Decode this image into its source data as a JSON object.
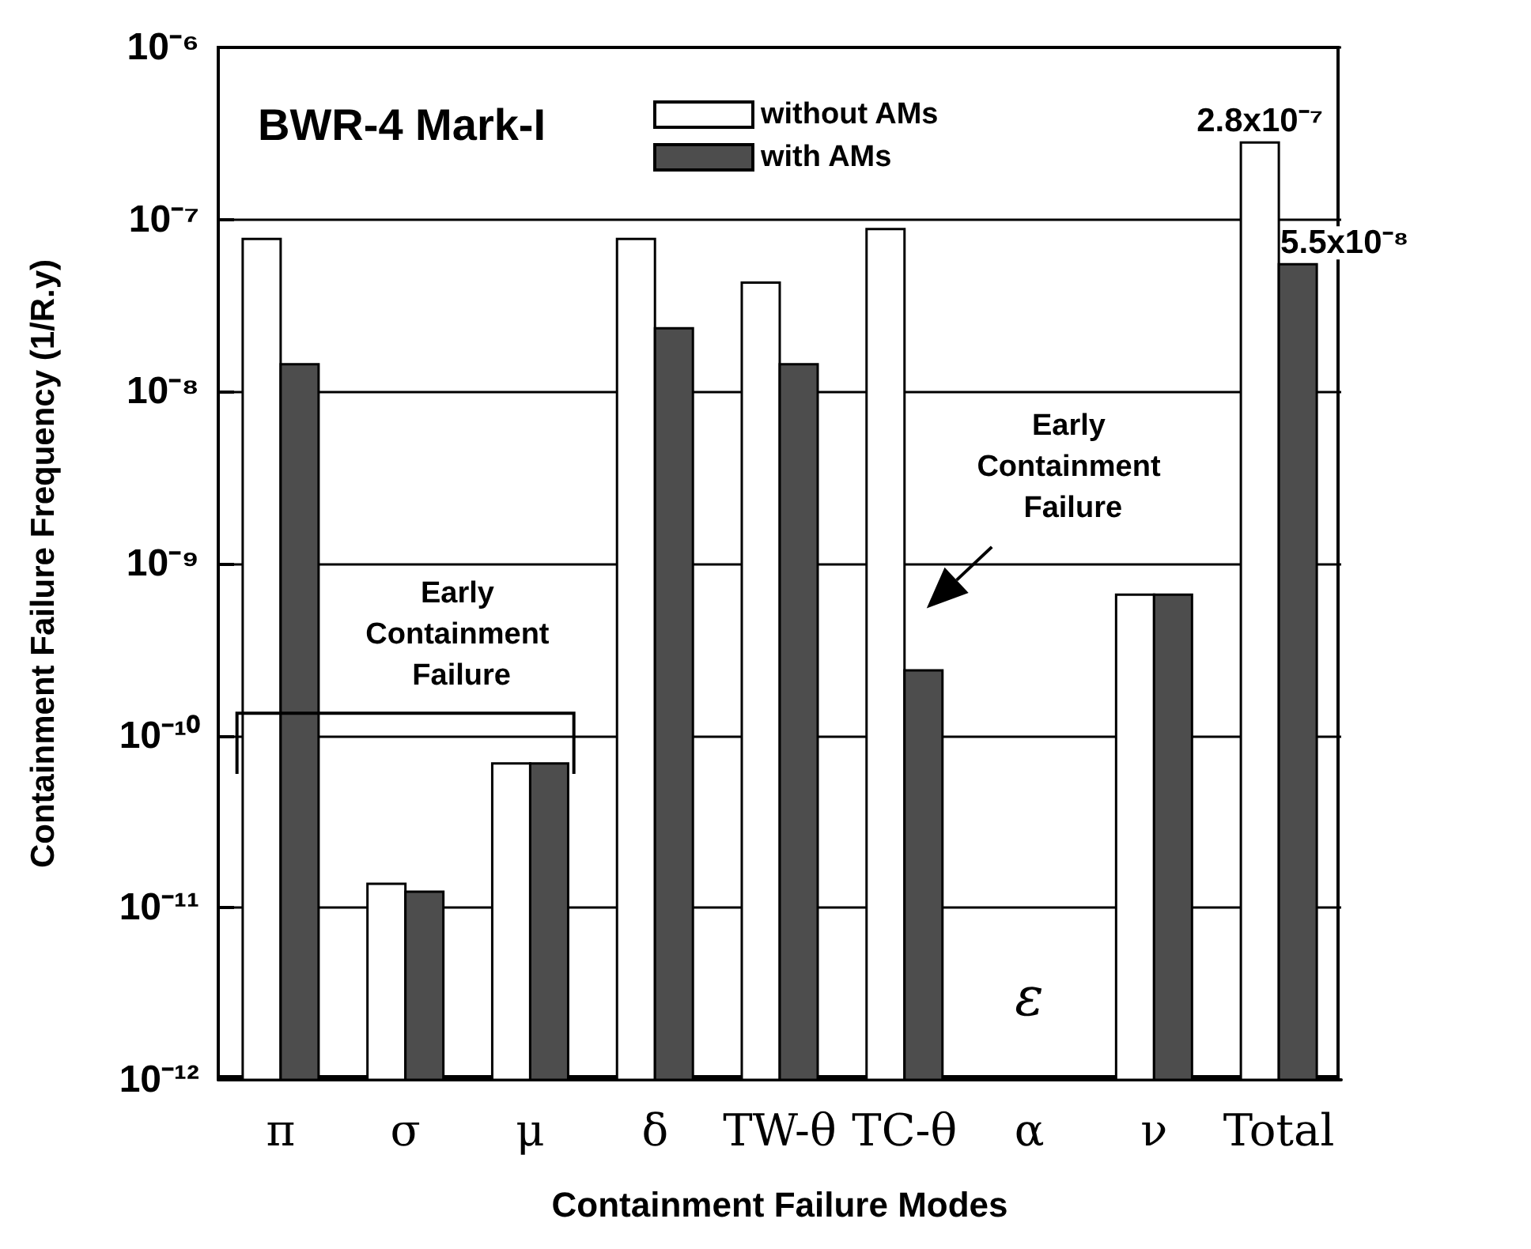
{
  "chart_data": {
    "type": "bar",
    "title": "BWR-4 Mark-I",
    "xlabel": "Containment Failure Modes",
    "ylabel": "Containment Failure Frequency (1/R.y)",
    "categories": [
      "π",
      "σ",
      "μ",
      "δ",
      "TW-θ",
      "TC-θ",
      "α",
      "ν",
      "Total"
    ],
    "series": [
      {
        "name": "without AMs",
        "color": "#ffffff",
        "values": [
          7.7e-08,
          1.38e-11,
          6.9e-11,
          7.7e-08,
          4.3e-08,
          8.8e-08,
          null,
          6.6e-10,
          2.8e-07
        ],
        "value_labels": [
          null,
          null,
          null,
          null,
          null,
          null,
          null,
          null,
          "2.8x10⁻⁷"
        ]
      },
      {
        "name": "with AMs",
        "color": "#4d4d4d",
        "values": [
          1.44e-08,
          1.24e-11,
          6.9e-11,
          2.33e-08,
          1.44e-08,
          2.4e-10,
          null,
          6.6e-10,
          5.5e-08
        ],
        "value_labels": [
          null,
          null,
          null,
          null,
          null,
          null,
          null,
          null,
          "5.5x10⁻⁸"
        ]
      }
    ],
    "ylim": [
      1e-12,
      1e-06
    ],
    "yticks": [
      {
        "value": 1e-12,
        "label": "10⁻¹²"
      },
      {
        "value": 1e-11,
        "label": "10⁻¹¹"
      },
      {
        "value": 1e-10,
        "label": "10⁻¹⁰"
      },
      {
        "value": 1e-09,
        "label": "10⁻⁹"
      },
      {
        "value": 1e-08,
        "label": "10⁻⁸"
      },
      {
        "value": 1e-07,
        "label": "10⁻⁷"
      },
      {
        "value": 1e-06,
        "label": "10⁻⁶"
      }
    ],
    "log": true,
    "grid": "y",
    "legend": "top",
    "annotations": [
      "Early Containment Failure",
      "Early Containment Failure",
      "ε"
    ]
  }
}
